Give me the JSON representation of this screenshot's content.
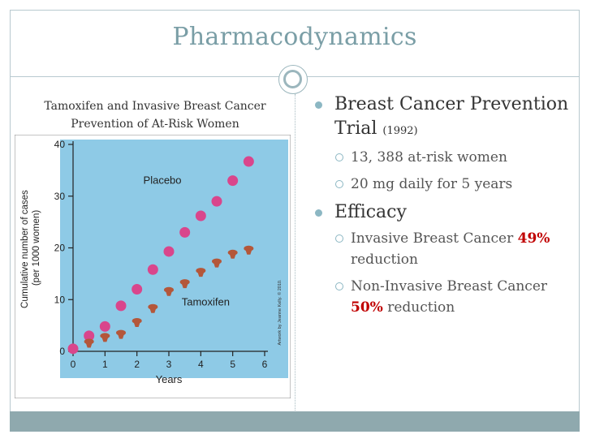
{
  "slide": {
    "title": "Pharmacodynamics",
    "chart_caption_line1": "Tamoxifen and Invasive Breast Cancer",
    "chart_caption_line2": "Prevention of At-Risk Women"
  },
  "bullets": {
    "b1_text": "Breast Cancer Prevention Trial",
    "b1_year": "(1992)",
    "b1_sub1": "13, 388 at-risk women",
    "b1_sub2": "20 mg daily for 5 years",
    "b2_text": "Efficacy",
    "b2_sub1_a": "Invasive Breast Cancer",
    "b2_sub1_pct": "49%",
    "b2_sub1_b": "reduction",
    "b2_sub2_a": "Non-Invasive Breast Cancer",
    "b2_sub2_pct": "50%",
    "b2_sub2_b": "reduction"
  },
  "colors": {
    "title": "#7a9ea6",
    "chart_bg": "#8ecae6",
    "placebo": "#d9468c",
    "tamoxifen": "#b4573a",
    "highlight": "#c00000"
  },
  "chart_data": {
    "type": "scatter",
    "xlabel": "Years",
    "ylabel": "Cumulative number of cases (per 1000 women)",
    "xlim": [
      0,
      6
    ],
    "ylim": [
      0,
      40
    ],
    "xticks": [
      0,
      1,
      2,
      3,
      4,
      5,
      6
    ],
    "yticks": [
      0,
      10,
      20,
      30,
      40
    ],
    "credit": "Artwork by Jeanne Kelly. © 2010.",
    "series": [
      {
        "name": "Placebo",
        "x": [
          0,
          0.5,
          1,
          1.5,
          2,
          2.5,
          3,
          3.5,
          4,
          4.5,
          5,
          5.5
        ],
        "y": [
          0.5,
          3,
          4.8,
          8.8,
          12,
          15.8,
          19.3,
          23,
          26.2,
          29,
          33,
          36.7
        ]
      },
      {
        "name": "Tamoxifen",
        "x": [
          0.5,
          1,
          1.5,
          2,
          2.5,
          3,
          3.5,
          4,
          4.5,
          5,
          5.5
        ],
        "y": [
          1.5,
          2.6,
          3.2,
          5.5,
          8.2,
          11.5,
          13,
          15.2,
          17,
          18.7,
          19.5
        ]
      }
    ]
  }
}
